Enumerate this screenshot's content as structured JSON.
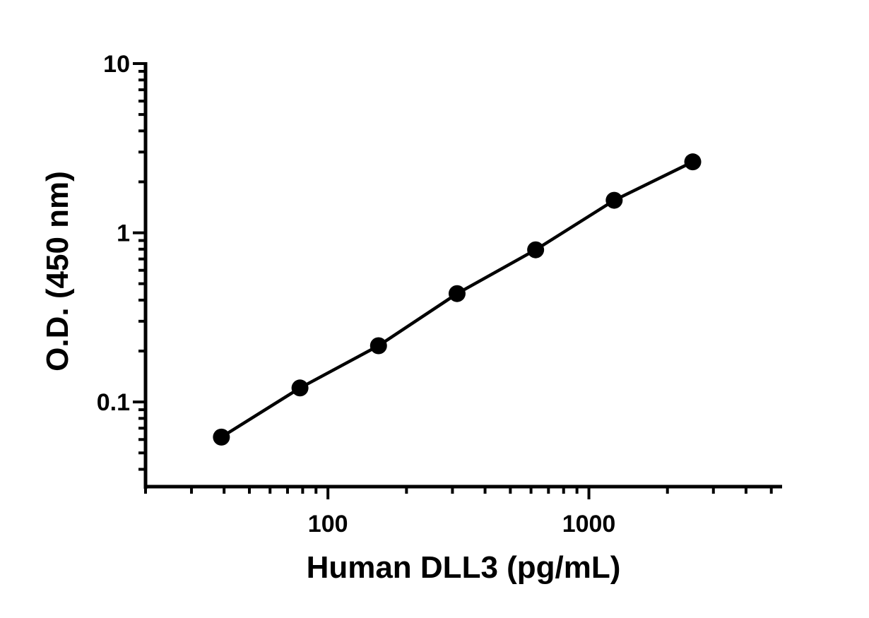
{
  "chart_data": {
    "type": "scatter",
    "title": "",
    "xlabel": "Human DLL3 (pg/mL)",
    "ylabel": "O.D. (450 nm)",
    "x_scale": "log",
    "y_scale": "log",
    "xlim": [
      20,
      5500
    ],
    "ylim": [
      0.0316,
      10
    ],
    "x_tick_labels": [
      "100",
      "1000"
    ],
    "x_tick_values": [
      100,
      1000
    ],
    "y_tick_labels": [
      "0.1",
      "1",
      "10"
    ],
    "y_tick_values": [
      0.1,
      1,
      10
    ],
    "grid": false,
    "series": [
      {
        "x": [
          39.06,
          78.13,
          156.25,
          312.5,
          625,
          1250,
          2500
        ],
        "y": [
          0.062,
          0.121,
          0.215,
          0.437,
          0.793,
          1.556,
          2.625
        ],
        "marker": "circle",
        "fit_line": true
      }
    ],
    "colors": {
      "marks": "#000000",
      "axes": "#000000"
    }
  }
}
